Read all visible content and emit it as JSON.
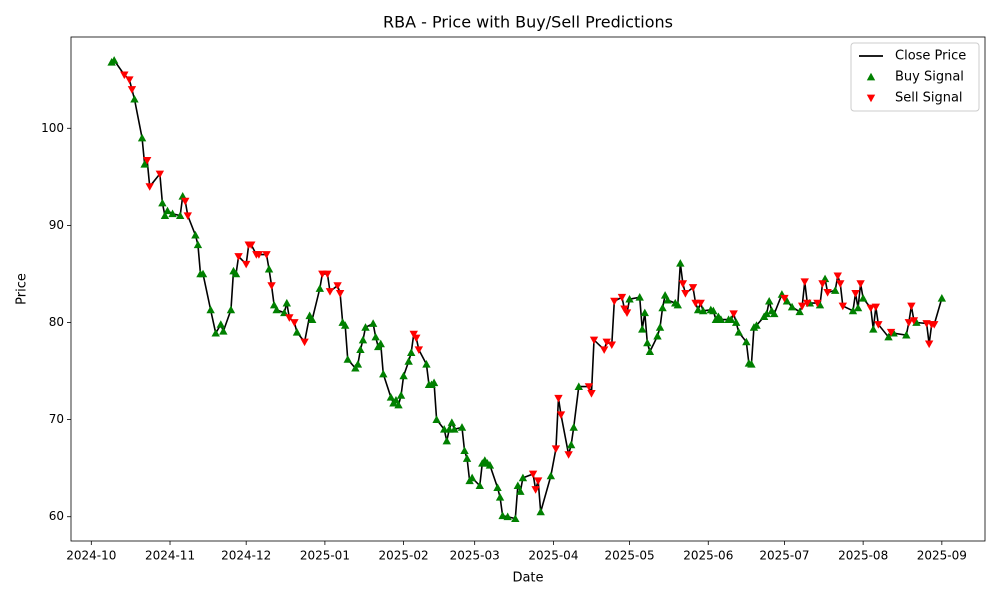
{
  "chart_data": {
    "type": "line",
    "title": "RBA - Price with Buy/Sell Predictions",
    "x_label": "Date",
    "y_label": "Price",
    "xlim": [
      "2024-09-23",
      "2025-09-18"
    ],
    "xticks": [
      "2024-10",
      "2024-11",
      "2024-12",
      "2025-01",
      "2025-02",
      "2025-03",
      "2025-04",
      "2025-05",
      "2025-06",
      "2025-07",
      "2025-08",
      "2025-09"
    ],
    "ylim": [
      57.5,
      109.4
    ],
    "yticks": [
      60,
      70,
      80,
      90,
      100
    ],
    "grid": false,
    "legend": "upper right",
    "series": [
      {
        "name": "Close Price",
        "color": "#000000",
        "marker": "line",
        "x": [
          "2024-10-09",
          "2024-10-10",
          "2024-10-14",
          "2024-10-16",
          "2024-10-17",
          "2024-10-18",
          "2024-10-21",
          "2024-10-22",
          "2024-10-23",
          "2024-10-24",
          "2024-10-28",
          "2024-10-29",
          "2024-10-30",
          "2024-10-31",
          "2024-11-02",
          "2024-11-05",
          "2024-11-06",
          "2024-11-07",
          "2024-11-08",
          "2024-11-11",
          "2024-11-12",
          "2024-11-13",
          "2024-11-14",
          "2024-11-17",
          "2024-11-19",
          "2024-11-21",
          "2024-11-22",
          "2024-11-25",
          "2024-11-26",
          "2024-11-27",
          "2024-11-28",
          "2024-12-01",
          "2024-12-02",
          "2024-12-03",
          "2024-12-05",
          "2024-12-06",
          "2024-12-09",
          "2024-12-10",
          "2024-12-11",
          "2024-12-12",
          "2024-12-13",
          "2024-12-16",
          "2024-12-17",
          "2024-12-18",
          "2024-12-20",
          "2024-12-21",
          "2024-12-24",
          "2024-12-26",
          "2024-12-27",
          "2024-12-30",
          "2024-12-31",
          "2025-01-02",
          "2025-01-03",
          "2025-01-06",
          "2025-01-07",
          "2025-01-08",
          "2025-01-09",
          "2025-01-10",
          "2025-01-13",
          "2025-01-14",
          "2025-01-15",
          "2025-01-16",
          "2025-01-17",
          "2025-01-20",
          "2025-01-21",
          "2025-01-22",
          "2025-01-23",
          "2025-01-24",
          "2025-01-27",
          "2025-01-28",
          "2025-01-29",
          "2025-01-30",
          "2025-01-31",
          "2025-02-01",
          "2025-02-03",
          "2025-02-04",
          "2025-02-05",
          "2025-02-06",
          "2025-02-07",
          "2025-02-10",
          "2025-02-11",
          "2025-02-12",
          "2025-02-13",
          "2025-02-14",
          "2025-02-17",
          "2025-02-18",
          "2025-02-19",
          "2025-02-20",
          "2025-02-21",
          "2025-02-24",
          "2025-02-25",
          "2025-02-26",
          "2025-02-27",
          "2025-02-28",
          "2025-03-03",
          "2025-03-04",
          "2025-03-05",
          "2025-03-06",
          "2025-03-07",
          "2025-03-10",
          "2025-03-11",
          "2025-03-12",
          "2025-03-14",
          "2025-03-17",
          "2025-03-18",
          "2025-03-19",
          "2025-03-20",
          "2025-03-24",
          "2025-03-25",
          "2025-03-26",
          "2025-03-27",
          "2025-03-31",
          "2025-04-02",
          "2025-04-03",
          "2025-04-04",
          "2025-04-07",
          "2025-04-08",
          "2025-04-09",
          "2025-04-11",
          "2025-04-15",
          "2025-04-16",
          "2025-04-17",
          "2025-04-21",
          "2025-04-22",
          "2025-04-24",
          "2025-04-25",
          "2025-04-28",
          "2025-04-29",
          "2025-04-30",
          "2025-05-01",
          "2025-05-05",
          "2025-05-06",
          "2025-05-07",
          "2025-05-08",
          "2025-05-09",
          "2025-05-12",
          "2025-05-13",
          "2025-05-14",
          "2025-05-15",
          "2025-05-16",
          "2025-05-19",
          "2025-05-20",
          "2025-05-21",
          "2025-05-22",
          "2025-05-23",
          "2025-05-26",
          "2025-05-27",
          "2025-05-28",
          "2025-05-29",
          "2025-05-30",
          "2025-06-02",
          "2025-06-03",
          "2025-06-04",
          "2025-06-05",
          "2025-06-06",
          "2025-06-09",
          "2025-06-10",
          "2025-06-11",
          "2025-06-12",
          "2025-06-13",
          "2025-06-16",
          "2025-06-17",
          "2025-06-18",
          "2025-06-19",
          "2025-06-20",
          "2025-06-23",
          "2025-06-24",
          "2025-06-25",
          "2025-06-26",
          "2025-06-27",
          "2025-06-30",
          "2025-07-01",
          "2025-07-02",
          "2025-07-04",
          "2025-07-07",
          "2025-07-08",
          "2025-07-09",
          "2025-07-10",
          "2025-07-11",
          "2025-07-14",
          "2025-07-15",
          "2025-07-16",
          "2025-07-17",
          "2025-07-18",
          "2025-07-21",
          "2025-07-22",
          "2025-07-23",
          "2025-07-24",
          "2025-07-28",
          "2025-07-29",
          "2025-07-30",
          "2025-07-31",
          "2025-08-01",
          "2025-08-04",
          "2025-08-05",
          "2025-08-06",
          "2025-08-07",
          "2025-08-11",
          "2025-08-12",
          "2025-08-13",
          "2025-08-18",
          "2025-08-19",
          "2025-08-20",
          "2025-08-21",
          "2025-08-22",
          "2025-08-26",
          "2025-08-27",
          "2025-08-28",
          "2025-08-29",
          "2025-09-01"
        ],
        "values": [
          106.8,
          107,
          105.5,
          105,
          104,
          103,
          99,
          96.3,
          96.7,
          94,
          95.3,
          92.3,
          91,
          91.5,
          91.2,
          91,
          93,
          92.5,
          91,
          89,
          88,
          85,
          85,
          81.3,
          78.9,
          79.8,
          79.1,
          81.3,
          85.3,
          85,
          86.8,
          86,
          88,
          88,
          87,
          87,
          87,
          85.5,
          83.8,
          81.8,
          81.3,
          81,
          82,
          80.5,
          80,
          79,
          78,
          80.7,
          80.3,
          83.5,
          85,
          85,
          83.2,
          83.8,
          83,
          80,
          79.7,
          76.2,
          75.3,
          75.7,
          77.2,
          78.2,
          79.5,
          79.9,
          78.5,
          77.5,
          77.8,
          74.7,
          72.3,
          71.7,
          72,
          71.5,
          72.5,
          74.5,
          76,
          76.9,
          78.8,
          78.4,
          77.2,
          75.7,
          73.6,
          73.6,
          73.8,
          70,
          69,
          67.8,
          69,
          69.7,
          69,
          69.2,
          66.8,
          66,
          63.7,
          64,
          63.2,
          65.5,
          65.8,
          65.5,
          65.3,
          63,
          62,
          60.1,
          60,
          59.8,
          63.2,
          62.6,
          64,
          64.4,
          62.8,
          63.7,
          60.5,
          64.2,
          67,
          72.2,
          70.5,
          66.4,
          67.4,
          69.2,
          73.4,
          73.4,
          72.7,
          78.2,
          77.2,
          78,
          77.7,
          82.2,
          82.6,
          81.4,
          81,
          82.4,
          82.6,
          79.3,
          81,
          77.9,
          77,
          78.6,
          79.5,
          81.5,
          82.8,
          82.3,
          82,
          81.8,
          86.1,
          84,
          83,
          83.6,
          82,
          81.3,
          82,
          81.2,
          81.3,
          81.2,
          80.3,
          80.6,
          80.3,
          80.3,
          80.3,
          80.9,
          80,
          79,
          78,
          75.8,
          75.7,
          79.5,
          79.7,
          80.6,
          80.9,
          82.2,
          81.2,
          80.9,
          82.9,
          82.5,
          82.2,
          81.6,
          81.1,
          81.7,
          84.2,
          82,
          82,
          82,
          81.8,
          84,
          84.5,
          83.1,
          83.3,
          84.8,
          84,
          81.7,
          81.2,
          83,
          81.5,
          84,
          82.5,
          81.5,
          79.3,
          81.6,
          79.8,
          78.5,
          79,
          78.9,
          78.7,
          80,
          81.7,
          80.2,
          80,
          79.9,
          77.8,
          79.8,
          79.8,
          82.5
        ]
      },
      {
        "name": "Buy Signal",
        "color": "#008000",
        "marker": "triangle-up",
        "x": [
          "2024-10-09",
          "2024-10-10",
          "2024-10-18",
          "2024-10-21",
          "2024-10-22",
          "2024-10-29",
          "2024-10-30",
          "2024-10-31",
          "2024-11-02",
          "2024-11-05",
          "2024-11-06",
          "2024-11-11",
          "2024-11-12",
          "2024-11-13",
          "2024-11-14",
          "2024-11-17",
          "2024-11-19",
          "2024-11-21",
          "2024-11-22",
          "2024-11-25",
          "2024-11-26",
          "2024-11-27",
          "2024-12-10",
          "2024-12-12",
          "2024-12-13",
          "2024-12-16",
          "2024-12-17",
          "2024-12-21",
          "2024-12-26",
          "2024-12-27",
          "2024-12-30",
          "2025-01-08",
          "2025-01-09",
          "2025-01-10",
          "2025-01-13",
          "2025-01-14",
          "2025-01-15",
          "2025-01-16",
          "2025-01-17",
          "2025-01-20",
          "2025-01-21",
          "2025-01-22",
          "2025-01-23",
          "2025-01-24",
          "2025-01-27",
          "2025-01-28",
          "2025-01-29",
          "2025-01-30",
          "2025-01-31",
          "2025-02-01",
          "2025-02-03",
          "2025-02-04",
          "2025-02-10",
          "2025-02-11",
          "2025-02-12",
          "2025-02-13",
          "2025-02-14",
          "2025-02-17",
          "2025-02-18",
          "2025-02-19",
          "2025-02-20",
          "2025-02-21",
          "2025-02-24",
          "2025-02-25",
          "2025-02-26",
          "2025-02-27",
          "2025-02-28",
          "2025-03-03",
          "2025-03-04",
          "2025-03-05",
          "2025-03-06",
          "2025-03-07",
          "2025-03-10",
          "2025-03-11",
          "2025-03-12",
          "2025-03-14",
          "2025-03-17",
          "2025-03-18",
          "2025-03-19",
          "2025-03-20",
          "2025-03-27",
          "2025-03-31",
          "2025-04-08",
          "2025-04-09",
          "2025-04-11",
          "2025-05-01",
          "2025-05-05",
          "2025-05-06",
          "2025-05-07",
          "2025-05-08",
          "2025-05-09",
          "2025-05-12",
          "2025-05-13",
          "2025-05-14",
          "2025-05-15",
          "2025-05-16",
          "2025-05-19",
          "2025-05-20",
          "2025-05-21",
          "2025-05-28",
          "2025-05-30",
          "2025-06-02",
          "2025-06-03",
          "2025-06-04",
          "2025-06-05",
          "2025-06-06",
          "2025-06-09",
          "2025-06-10",
          "2025-06-12",
          "2025-06-13",
          "2025-06-16",
          "2025-06-17",
          "2025-06-18",
          "2025-06-19",
          "2025-06-20",
          "2025-06-23",
          "2025-06-24",
          "2025-06-25",
          "2025-06-26",
          "2025-06-27",
          "2025-06-30",
          "2025-07-02",
          "2025-07-04",
          "2025-07-07",
          "2025-07-11",
          "2025-07-15",
          "2025-07-17",
          "2025-07-21",
          "2025-07-28",
          "2025-07-30",
          "2025-08-01",
          "2025-08-05",
          "2025-08-11",
          "2025-08-13",
          "2025-08-18",
          "2025-08-22",
          "2025-09-01"
        ],
        "values": [
          106.8,
          107,
          103,
          99,
          96.3,
          92.3,
          91,
          91.5,
          91.2,
          91,
          93,
          89,
          88,
          85,
          85,
          81.3,
          78.9,
          79.8,
          79.1,
          81.3,
          85.3,
          85,
          85.5,
          81.8,
          81.3,
          81,
          82,
          79,
          80.7,
          80.3,
          83.5,
          80,
          79.7,
          76.2,
          75.3,
          75.7,
          77.2,
          78.2,
          79.5,
          79.9,
          78.5,
          77.5,
          77.8,
          74.7,
          72.3,
          71.7,
          72,
          71.5,
          72.5,
          74.5,
          76,
          76.9,
          75.7,
          73.6,
          73.6,
          73.8,
          70,
          69,
          67.8,
          69,
          69.7,
          69,
          69.2,
          66.8,
          66,
          63.7,
          64,
          63.2,
          65.5,
          65.8,
          65.5,
          65.3,
          63,
          62,
          60.1,
          60,
          59.8,
          63.2,
          62.6,
          64,
          60.5,
          64.2,
          67.4,
          69.2,
          73.4,
          82.4,
          82.6,
          79.3,
          81,
          77.9,
          77,
          78.6,
          79.5,
          81.5,
          82.8,
          82.3,
          82,
          81.8,
          86.1,
          81.3,
          81.2,
          81.3,
          81.2,
          80.3,
          80.6,
          80.3,
          80.3,
          80.3,
          80,
          79,
          78,
          75.8,
          75.7,
          79.5,
          79.7,
          80.6,
          80.9,
          82.2,
          81.2,
          80.9,
          82.9,
          82.2,
          81.6,
          81.1,
          82,
          81.8,
          84.5,
          83.3,
          81.2,
          81.5,
          82.5,
          79.3,
          78.5,
          78.9,
          78.7,
          80,
          82.5
        ]
      },
      {
        "name": "Sell Signal",
        "color": "#ff0000",
        "marker": "triangle-down",
        "x": [
          "2024-10-14",
          "2024-10-16",
          "2024-10-17",
          "2024-10-23",
          "2024-10-24",
          "2024-10-28",
          "2024-11-07",
          "2024-11-08",
          "2024-11-28",
          "2024-12-01",
          "2024-12-02",
          "2024-12-03",
          "2024-12-05",
          "2024-12-06",
          "2024-12-09",
          "2024-12-11",
          "2024-12-18",
          "2024-12-20",
          "2024-12-24",
          "2024-12-31",
          "2025-01-02",
          "2025-01-03",
          "2025-01-06",
          "2025-01-07",
          "2025-02-05",
          "2025-02-06",
          "2025-02-07",
          "2025-03-24",
          "2025-03-25",
          "2025-03-26",
          "2025-04-02",
          "2025-04-03",
          "2025-04-04",
          "2025-04-07",
          "2025-04-15",
          "2025-04-16",
          "2025-04-17",
          "2025-04-21",
          "2025-04-22",
          "2025-04-24",
          "2025-04-25",
          "2025-04-28",
          "2025-04-29",
          "2025-04-30",
          "2025-05-22",
          "2025-05-23",
          "2025-05-26",
          "2025-05-27",
          "2025-05-29",
          "2025-06-11",
          "2025-07-01",
          "2025-07-08",
          "2025-07-09",
          "2025-07-10",
          "2025-07-14",
          "2025-07-16",
          "2025-07-18",
          "2025-07-22",
          "2025-07-23",
          "2025-07-24",
          "2025-07-29",
          "2025-07-31",
          "2025-08-04",
          "2025-08-06",
          "2025-08-07",
          "2025-08-12",
          "2025-08-19",
          "2025-08-20",
          "2025-08-21",
          "2025-08-26",
          "2025-08-27",
          "2025-08-28",
          "2025-08-29"
        ],
        "values": [
          105.5,
          105,
          104,
          96.7,
          94,
          95.3,
          92.5,
          91,
          86.8,
          86,
          88,
          88,
          87,
          87,
          87,
          83.8,
          80.5,
          80,
          78,
          85,
          85,
          83.2,
          83.8,
          83,
          78.8,
          78.4,
          77.2,
          64.4,
          62.8,
          63.7,
          67,
          72.2,
          70.5,
          66.4,
          73.4,
          72.7,
          78.2,
          77.2,
          78,
          77.7,
          82.2,
          82.6,
          81.4,
          81,
          84,
          83,
          83.6,
          82,
          82,
          80.9,
          82.5,
          81.7,
          84.2,
          82,
          82,
          84,
          83.1,
          84.8,
          84,
          81.7,
          83,
          84,
          81.5,
          81.6,
          79.8,
          79,
          80,
          81.7,
          80.2,
          79.9,
          77.8,
          79.8,
          79.8
        ]
      }
    ]
  }
}
